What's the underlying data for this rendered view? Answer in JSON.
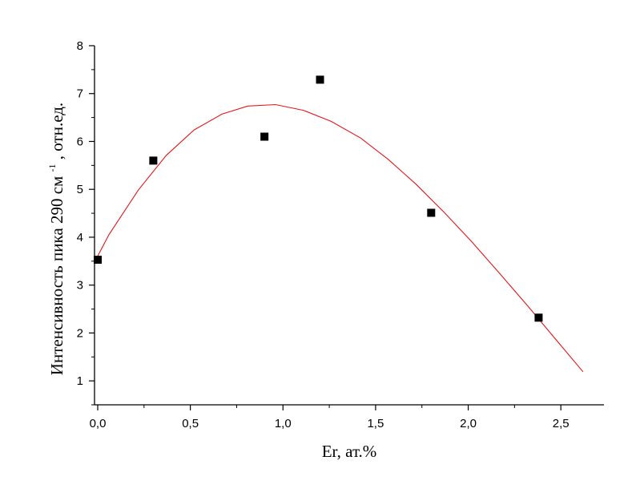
{
  "chart_data": {
    "type": "scatter",
    "title": "",
    "xlabel": "Er, ат.%",
    "ylabel": {
      "main": "Интенсивность пика 290 см",
      "superscript": "-1",
      "tail": " , отн.ед."
    },
    "xlim": [
      0,
      2.75
    ],
    "ylim": [
      0.5,
      8
    ],
    "x_ticks": [
      {
        "value": 0,
        "label": "0,0"
      },
      {
        "value": 0.5,
        "label": "0,5"
      },
      {
        "value": 1.0,
        "label": "1,0"
      },
      {
        "value": 1.5,
        "label": "1,5"
      },
      {
        "value": 2.0,
        "label": "2,0"
      },
      {
        "value": 2.5,
        "label": "2,5"
      }
    ],
    "y_ticks": [
      {
        "value": 1,
        "label": "1"
      },
      {
        "value": 2,
        "label": "2"
      },
      {
        "value": 3,
        "label": "3"
      },
      {
        "value": 4,
        "label": "4"
      },
      {
        "value": 5,
        "label": "5"
      },
      {
        "value": 6,
        "label": "6"
      },
      {
        "value": 7,
        "label": "7"
      },
      {
        "value": 8,
        "label": "8"
      }
    ],
    "grid": false,
    "series": [
      {
        "kind": "points",
        "marker": "square",
        "color": "#000000",
        "x": [
          0.0,
          0.3,
          0.9,
          1.2,
          1.8,
          2.38
        ],
        "y": [
          3.53,
          5.6,
          6.1,
          7.29,
          4.51,
          2.32
        ]
      },
      {
        "kind": "fit-line",
        "color": "#e8161b",
        "x": [
          -0.02,
          0.06,
          0.22,
          0.37,
          0.52,
          0.67,
          0.81,
          0.96,
          1.11,
          1.26,
          1.42,
          1.57,
          1.72,
          1.87,
          2.02,
          2.17,
          2.32,
          2.47,
          2.62
        ],
        "y": [
          3.46,
          4.05,
          4.99,
          5.71,
          6.24,
          6.57,
          6.74,
          6.77,
          6.65,
          6.42,
          6.07,
          5.62,
          5.1,
          4.52,
          3.9,
          3.24,
          2.57,
          1.88,
          1.19
        ]
      }
    ]
  }
}
